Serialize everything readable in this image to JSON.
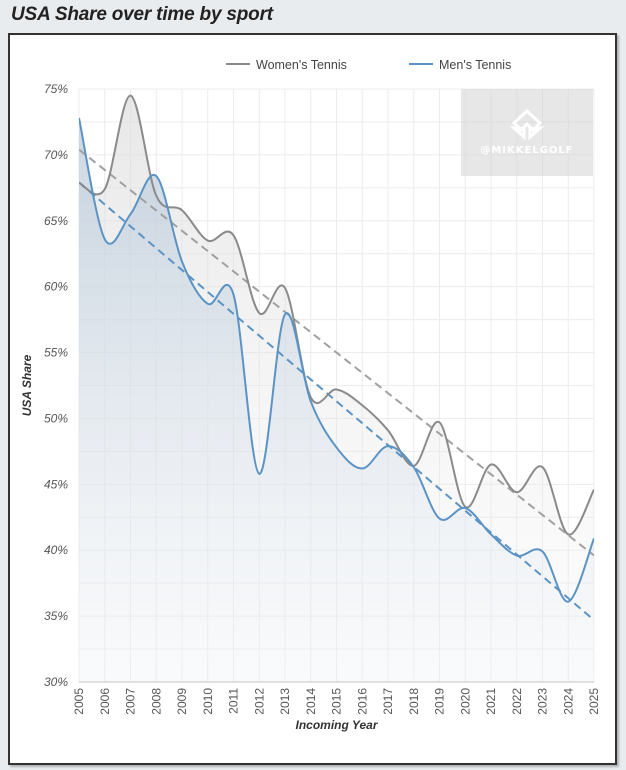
{
  "page": {
    "title": "USA Share over time by sport"
  },
  "watermark": {
    "text": "@MIKKELGOLF"
  },
  "colors": {
    "women": "#8a8a8a",
    "men": "#5b93c4",
    "women_trend": "#a0a0a0",
    "men_trend": "#5b93c4"
  },
  "chart_data": {
    "type": "line",
    "title": "USA Share over time by sport",
    "xlabel": "Incoming Year",
    "ylabel": "USA Share",
    "x": [
      2005,
      2006,
      2007,
      2008,
      2009,
      2010,
      2011,
      2012,
      2013,
      2014,
      2015,
      2016,
      2017,
      2018,
      2019,
      2020,
      2021,
      2022,
      2023,
      2024,
      2025
    ],
    "x_tick_labels": [
      "2005",
      "2006",
      "2007",
      "2008",
      "2009",
      "2010",
      "2011",
      "2012",
      "2013",
      "2014",
      "2015",
      "2016",
      "2017",
      "2018",
      "2019",
      "2020",
      "2021",
      "2022",
      "2023",
      "2024",
      "2025"
    ],
    "ylim": [
      30,
      75
    ],
    "y_ticks": [
      30,
      35,
      40,
      45,
      50,
      55,
      60,
      65,
      70,
      75
    ],
    "y_tick_labels": [
      "30%",
      "35%",
      "40%",
      "45%",
      "50%",
      "55%",
      "60%",
      "65%",
      "70%",
      "75%"
    ],
    "grid": true,
    "legend_position": "top-center",
    "series": [
      {
        "name": "Women's Tennis",
        "values": [
          67.9,
          67.4,
          74.5,
          66.9,
          65.8,
          63.5,
          63.9,
          58.0,
          59.9,
          51.6,
          52.2,
          51.0,
          49.1,
          46.4,
          49.7,
          43.3,
          46.5,
          44.4,
          46.3,
          41.2,
          44.6
        ],
        "trend": [
          70.4,
          39.6
        ]
      },
      {
        "name": "Men's Tennis",
        "values": [
          72.8,
          63.6,
          65.5,
          68.4,
          61.9,
          58.7,
          59.4,
          45.8,
          57.9,
          51.3,
          47.8,
          46.2,
          47.9,
          46.3,
          42.4,
          43.2,
          41.2,
          39.6,
          39.9,
          36.1,
          40.9
        ],
        "trend": [
          67.9,
          34.7
        ]
      }
    ]
  }
}
